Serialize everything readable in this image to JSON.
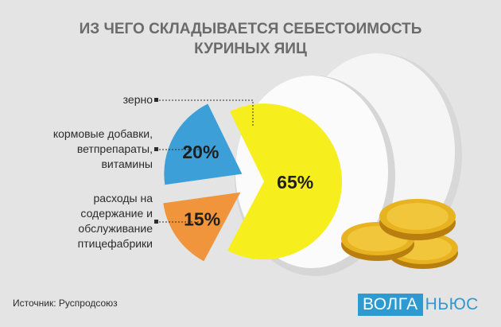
{
  "title_lines": [
    "ИЗ ЧЕГО СКЛАДЫВАЕТСЯ СЕБЕСТОИМОСТЬ",
    "КУРИНЫХ ЯИЦ"
  ],
  "chart_data": {
    "type": "pie",
    "title": "ИЗ ЧЕГО СКЛАДЫВАЕТСЯ СЕБЕСТОИМОСТЬ КУРИНЫХ ЯИЦ",
    "slices": [
      {
        "label_lines": [
          "зерно"
        ],
        "value": 65,
        "value_label": "65%",
        "color": "#f7ee1e"
      },
      {
        "label_lines": [
          "кормовые добавки,",
          "ветпрепараты,",
          "витамины"
        ],
        "value": 15,
        "value_label": "15%",
        "color": "#f0953c"
      },
      {
        "label_lines": [
          "расходы на",
          "содержание и",
          "обслуживание",
          "птицефабрики"
        ],
        "value": 20,
        "value_label": "20%",
        "color": "#3d9fd7"
      }
    ]
  },
  "source": "Источник: Руспродсоюз",
  "logo": {
    "box_text": "ВОЛГА",
    "rest_text": "НЬЮС"
  },
  "colors": {
    "background": "#e4e4e4",
    "egg": "#fafafa",
    "coin": "#e8b321",
    "logo": "#2d9ad0"
  }
}
